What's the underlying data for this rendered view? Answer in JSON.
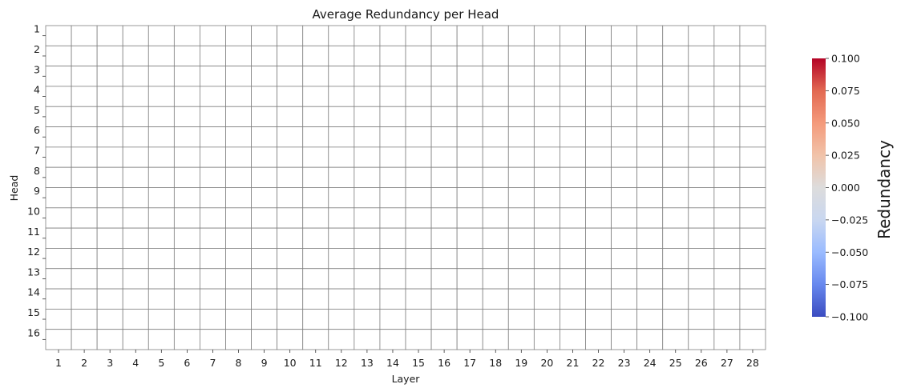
{
  "chart_data": {
    "type": "heatmap",
    "title": "Average Redundancy per Head",
    "xlabel": "Layer",
    "ylabel": "Head",
    "x_categories": [
      "1",
      "2",
      "3",
      "4",
      "5",
      "6",
      "7",
      "8",
      "9",
      "10",
      "11",
      "12",
      "13",
      "14",
      "15",
      "16",
      "17",
      "18",
      "19",
      "20",
      "21",
      "22",
      "23",
      "24",
      "25",
      "26",
      "27",
      "28"
    ],
    "y_categories": [
      "1",
      "2",
      "3",
      "4",
      "5",
      "6",
      "7",
      "8",
      "9",
      "10",
      "11",
      "12",
      "13",
      "14",
      "15",
      "16"
    ],
    "values_note_free": null,
    "values": [],
    "cell_fill": "#ffffff",
    "grid": true,
    "grid_color": "#808080",
    "colorbar": {
      "label": "Redundancy",
      "colormap": "coolwarm",
      "colors": [
        "#3b4cc0",
        "#6788ee",
        "#9abbff",
        "#c9d7f0",
        "#dddcdc",
        "#f1c3a9",
        "#f49a7b",
        "#e26952",
        "#b40426"
      ],
      "vmin": -0.1,
      "vmax": 0.1,
      "ticks": [
        "0.100",
        "0.075",
        "0.050",
        "0.025",
        "0.000",
        "−0.025",
        "−0.050",
        "−0.075",
        "−0.100"
      ],
      "position": "right"
    }
  }
}
